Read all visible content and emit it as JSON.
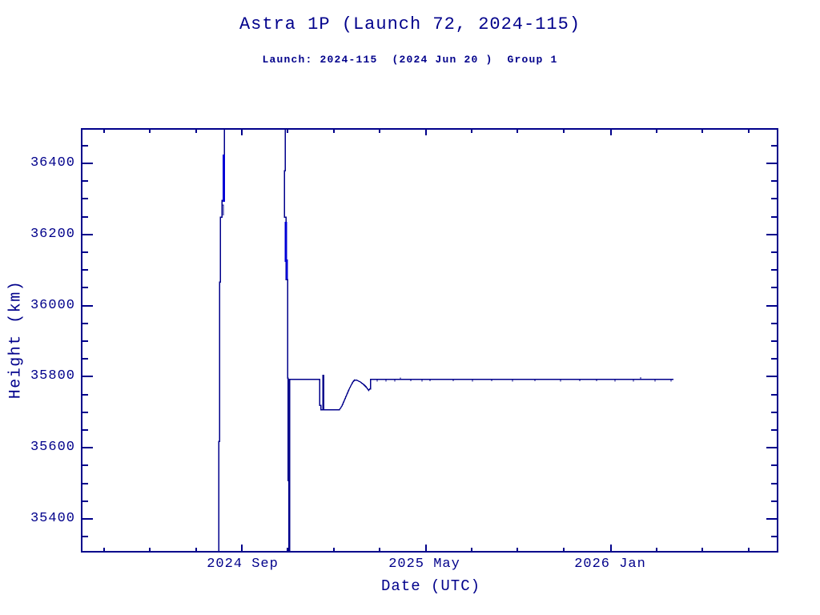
{
  "page": {
    "background": "#ffffff"
  },
  "colors": {
    "plot_line": "#00008B",
    "dense_segment": "#0000D6",
    "text": "#00008B",
    "frame": "#00008B"
  },
  "chart": {
    "title": "Astra 1P (Launch 72, 2024-115)",
    "subtitle": "Launch: 2024-115  (2024 Jun 20 )  Group 1",
    "xlabel": "Date (UTC)",
    "ylabel": "Height (km)",
    "ytick_labels": [
      "36400",
      "36200",
      "36000",
      "35800",
      "35600",
      "35400"
    ],
    "xtick_labels": [
      "2024 Sep",
      "2025 May",
      "2026 Jan"
    ]
  },
  "chart_data": {
    "type": "line",
    "title": "Astra 1P (Launch 72, 2024-115)",
    "subtitle": "Launch: 2024-115  (2024 Jun 20 )  Group 1",
    "xlabel": "Date (UTC)",
    "ylabel": "Height (km)",
    "ylim": [
      35300,
      36500
    ],
    "yticks": [
      35400,
      35600,
      35800,
      36000,
      36200,
      36400
    ],
    "y_minor_tick_step_km": 50,
    "xticks": [
      "2024 Sep",
      "2025 May",
      "2026 Jan"
    ],
    "x_minor_tick_step_months": 2,
    "x_range_approx": [
      "2024 Feb",
      "2026 Aug"
    ],
    "grid": false,
    "legend": "none",
    "line_color": "#00008B",
    "series": [
      {
        "name": "height_km",
        "points": [
          [
            "2024-08-01",
            36500
          ],
          [
            "2024-08-01",
            36260
          ],
          [
            "2024-08-02",
            35300
          ],
          [
            "2024-10-01",
            36500
          ],
          [
            "2024-10-02",
            36080
          ],
          [
            "2024-10-03",
            35510
          ],
          [
            "2024-10-03",
            35300
          ],
          [
            "2024-11-04",
            35790
          ],
          [
            "2024-12-10",
            35790
          ],
          [
            "2024-12-11",
            35715
          ],
          [
            "2024-12-12",
            35802
          ],
          [
            "2024-12-13",
            35703
          ],
          [
            "2025-01-05",
            35703
          ],
          [
            "2025-01-24",
            35791
          ],
          [
            "2025-02-08",
            35762
          ],
          [
            "2025-02-13",
            35790
          ],
          [
            "2026-03-22",
            35790
          ]
        ]
      }
    ],
    "annotations": [
      "Two near-vertical excursions spanning the full y-range (clipped top and bottom) during orbit raising, approx Aug 2024 and Oct 2024",
      "Dip to ~35700 km from ~Dec 2024 to early Jan 2025, then recovery",
      "Stable plateau at ~35790 km (GEO) from ~Feb 2025 until data end ~Mar 2026"
    ]
  }
}
